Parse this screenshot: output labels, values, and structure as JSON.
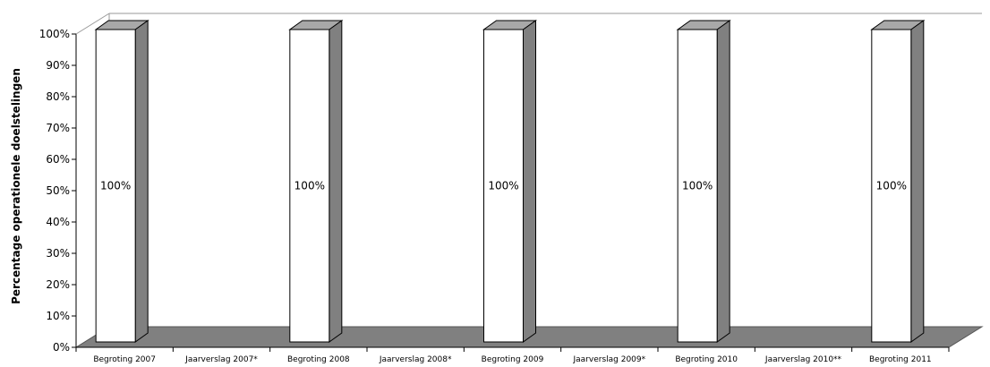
{
  "chart_data": {
    "type": "bar",
    "ylabel": "Percentage operationele doelstelingen",
    "xlabel": "",
    "title": "",
    "ylim": [
      0,
      100
    ],
    "y_ticks": [
      "0%",
      "10%",
      "20%",
      "30%",
      "40%",
      "50%",
      "60%",
      "70%",
      "80%",
      "90%",
      "100%"
    ],
    "categories": [
      "Begroting 2007",
      "Jaarverslag 2007*",
      "Begroting 2008",
      "Jaarverslag 2008*",
      "Begroting 2009",
      "Jaarverslag 2009*",
      "Begroting 2010",
      "Jaarverslag 2010**",
      "Begroting 2011"
    ],
    "values": [
      100,
      null,
      100,
      null,
      100,
      null,
      100,
      null,
      100
    ],
    "data_labels": [
      "100%",
      "",
      "100%",
      "",
      "100%",
      "",
      "100%",
      "",
      "100%"
    ],
    "grid": false,
    "style": "3d",
    "colors": {
      "bar_front": "#ffffff",
      "bar_side": "#808080",
      "bar_top": "#a8a8a8",
      "floor": "#808080",
      "axis": "#000000"
    }
  }
}
